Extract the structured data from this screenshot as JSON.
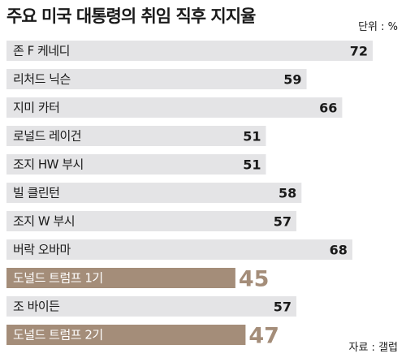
{
  "chart_data": {
    "type": "bar",
    "orientation": "horizontal",
    "title": "주요 미국 대통령의 취임 직후 지지율",
    "unit_label": "단위 : %",
    "source": "자료 : 갤럽",
    "xlim": [
      0,
      72
    ],
    "categories": [
      "존 F 케네디",
      "리처드 닉슨",
      "지미 카터",
      "로널드 레이건",
      "조지 HW 부시",
      "빌 클린턴",
      "조지 W 부시",
      "버락 오바마",
      "도널드 트럼프 1기",
      "조 바이든",
      "도널드 트럼프 2기"
    ],
    "values": [
      72,
      59,
      66,
      51,
      51,
      58,
      57,
      68,
      45,
      57,
      47
    ],
    "value_labels": [
      "72",
      "59",
      "66",
      "51",
      "51",
      "58",
      "57",
      "68",
      "45",
      "57",
      "47"
    ],
    "highlighted": [
      false,
      false,
      false,
      false,
      false,
      false,
      false,
      false,
      true,
      false,
      true
    ],
    "colors": {
      "bar": "#e4e4e6",
      "highlight_bar": "#a48d79",
      "label_text": "#1a1a1a",
      "highlight_label_text": "#ffffff",
      "highlight_value_text": "#a48d79"
    }
  }
}
